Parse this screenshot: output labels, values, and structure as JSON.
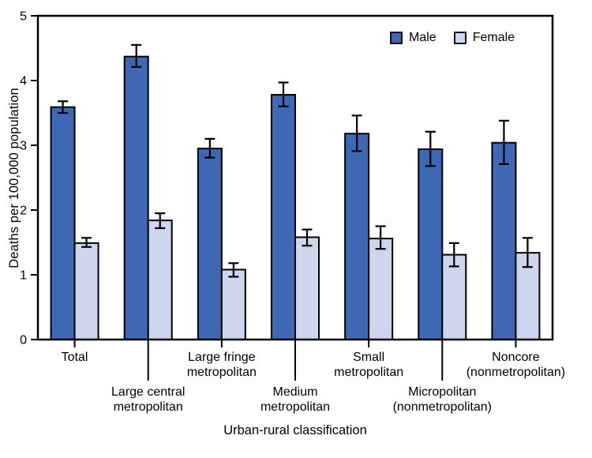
{
  "chart_data": {
    "type": "bar",
    "title": "",
    "xlabel": "Urban-rural classification",
    "ylabel": "Deaths per 100,000 population",
    "ylim": [
      0,
      5
    ],
    "yticks": [
      0,
      1,
      2,
      3,
      4,
      5
    ],
    "grid": false,
    "legend_position": "top-right-inside",
    "error_bars": true,
    "categories": [
      [
        "Total"
      ],
      [
        "Large central",
        "metropolitan"
      ],
      [
        "Large fringe",
        "metropolitan"
      ],
      [
        "Medium",
        "metropolitan"
      ],
      [
        "Small",
        "metropolitan"
      ],
      [
        "Micropolitan",
        "(nonmetropolitan)"
      ],
      [
        "Noncore",
        "(nonmetropolitan)"
      ]
    ],
    "category_label_rows": [
      1,
      2,
      1,
      2,
      1,
      2,
      1
    ],
    "series": [
      {
        "name": "Male",
        "color": "#3E68B4",
        "values": [
          3.59,
          4.37,
          2.95,
          3.78,
          3.18,
          2.94,
          3.04
        ],
        "ci_low": [
          3.5,
          4.21,
          2.81,
          3.6,
          2.91,
          2.68,
          2.71
        ],
        "ci_high": [
          3.68,
          4.55,
          3.1,
          3.97,
          3.46,
          3.21,
          3.38
        ]
      },
      {
        "name": "Female",
        "color": "#CDD6EC",
        "values": [
          1.49,
          1.84,
          1.08,
          1.58,
          1.56,
          1.31,
          1.34
        ],
        "ci_low": [
          1.43,
          1.72,
          0.97,
          1.45,
          1.4,
          1.13,
          1.12
        ],
        "ci_high": [
          1.57,
          1.95,
          1.18,
          1.7,
          1.75,
          1.49,
          1.57
        ]
      }
    ]
  },
  "colors": {
    "male": "#3E68B4",
    "female": "#CDD6EC",
    "axis": "#000000",
    "error_bar": "#000000",
    "text": "#000000",
    "background": "#FFFFFF"
  }
}
